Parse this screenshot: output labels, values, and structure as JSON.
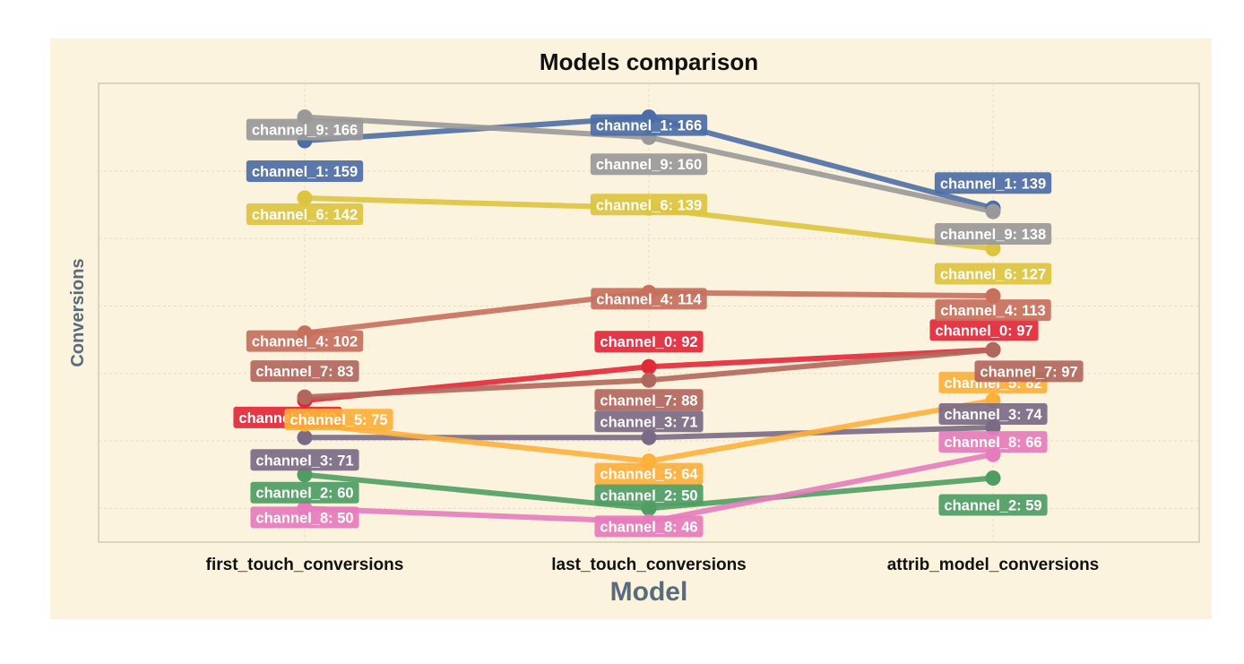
{
  "chart_data": {
    "type": "line",
    "title": "Models comparison",
    "xlabel": "Model",
    "ylabel": "Conversions",
    "categories": [
      "first_touch_conversions",
      "last_touch_conversions",
      "attrib_model_conversions"
    ],
    "ylim": [
      40,
      176
    ],
    "grid": true,
    "legend": "none",
    "series": [
      {
        "name": "channel_0",
        "values": [
          82,
          92,
          97
        ]
      },
      {
        "name": "channel_1",
        "values": [
          159,
          166,
          139
        ]
      },
      {
        "name": "channel_2",
        "values": [
          60,
          50,
          59
        ]
      },
      {
        "name": "channel_3",
        "values": [
          71,
          71,
          74
        ]
      },
      {
        "name": "channel_4",
        "values": [
          102,
          114,
          113
        ]
      },
      {
        "name": "channel_5",
        "values": [
          75,
          64,
          82
        ]
      },
      {
        "name": "channel_6",
        "values": [
          142,
          139,
          127
        ]
      },
      {
        "name": "channel_7",
        "values": [
          83,
          88,
          97
        ]
      },
      {
        "name": "channel_8",
        "values": [
          50,
          46,
          66
        ]
      },
      {
        "name": "channel_9",
        "values": [
          166,
          160,
          138
        ]
      }
    ],
    "labels": [
      [
        "channel_0: 82",
        "channel_0: 92",
        "channel_0: 97"
      ],
      [
        "channel_1: 159",
        "channel_1: 166",
        "channel_1: 139"
      ],
      [
        "channel_2: 60",
        "channel_2: 50",
        "channel_2: 59"
      ],
      [
        "channel_3: 71",
        "channel_3: 71",
        "channel_3: 74"
      ],
      [
        "channel_4: 102",
        "channel_4: 114",
        "channel_4: 113"
      ],
      [
        "channel_5: 75",
        "channel_5: 64",
        "channel_5: 82"
      ],
      [
        "channel_6: 142",
        "channel_6: 139",
        "channel_6: 127"
      ],
      [
        "channel_7: 83",
        "channel_7: 88",
        "channel_7: 97"
      ],
      [
        "channel_8: 50",
        "channel_8: 46",
        "channel_8: 66"
      ],
      [
        "channel_9: 166",
        "channel_9: 160",
        "channel_9: 138"
      ]
    ],
    "colors": {
      "background": "#fbf3dd",
      "panel_border": "#cfcab8",
      "grid": "#e6dcc4",
      "series": [
        "#e3283a",
        "#4c6ea6",
        "#4e9d63",
        "#7b6a86",
        "#c7705c",
        "#fdb03a",
        "#dcc43f",
        "#b2675c",
        "#e67cbc",
        "#999999"
      ]
    }
  }
}
